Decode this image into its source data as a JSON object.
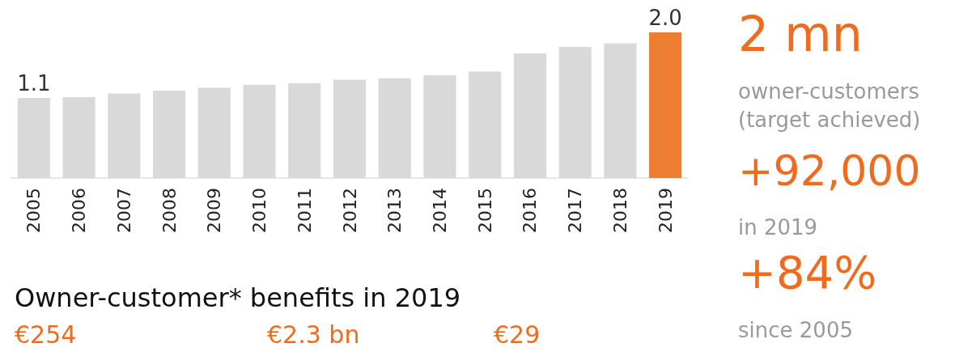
{
  "chart_data": {
    "type": "bar",
    "categories": [
      "2005",
      "2006",
      "2007",
      "2008",
      "2009",
      "2010",
      "2011",
      "2012",
      "2013",
      "2014",
      "2015",
      "2016",
      "2017",
      "2018",
      "2019"
    ],
    "values": [
      1.1,
      1.11,
      1.16,
      1.2,
      1.24,
      1.28,
      1.3,
      1.35,
      1.37,
      1.41,
      1.46,
      1.71,
      1.8,
      1.85,
      2.0
    ],
    "value_labels": [
      "1.1",
      null,
      null,
      null,
      null,
      null,
      null,
      null,
      null,
      null,
      null,
      null,
      null,
      null,
      "2.0"
    ],
    "colors": [
      "#d9d9d9",
      "#d9d9d9",
      "#d9d9d9",
      "#d9d9d9",
      "#d9d9d9",
      "#d9d9d9",
      "#d9d9d9",
      "#d9d9d9",
      "#d9d9d9",
      "#d9d9d9",
      "#d9d9d9",
      "#d9d9d9",
      "#d9d9d9",
      "#d9d9d9",
      "#ed7d31"
    ],
    "annotations": [
      "2 mn",
      "owner-customers",
      "(target achieved)",
      "+92,000",
      "in 2019",
      "+84%",
      "since 2005",
      "Owner-customer* benefits in 2019",
      "€254",
      "€2.3 bn",
      "€29"
    ]
  }
}
